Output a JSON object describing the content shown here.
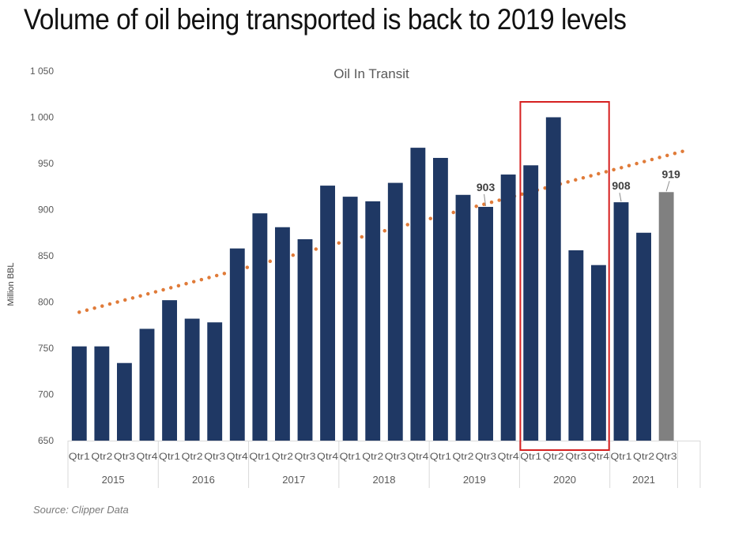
{
  "headline": "Volume of oil being transported is back to 2019 levels",
  "source": "Source: Clipper Data",
  "chart_data": {
    "type": "bar",
    "title": "Oil In Transit",
    "ylabel": "Million BBL",
    "xlabel": "",
    "ylim": [
      650,
      1050
    ],
    "yticks": [
      "650",
      "700",
      "750",
      "800",
      "850",
      "900",
      "950",
      "1 000",
      "1 050"
    ],
    "yticks_values": [
      650,
      700,
      750,
      800,
      850,
      900,
      950,
      1000,
      1050
    ],
    "categories": [
      "Qtr1",
      "Qtr2",
      "Qtr3",
      "Qtr4",
      "Qtr1",
      "Qtr2",
      "Qtr3",
      "Qtr4",
      "Qtr1",
      "Qtr2",
      "Qtr3",
      "Qtr4",
      "Qtr1",
      "Qtr2",
      "Qtr3",
      "Qtr4",
      "Qtr1",
      "Qtr2",
      "Qtr3",
      "Qtr4",
      "Qtr1",
      "Qtr2",
      "Qtr3",
      "Qtr4",
      "Qtr1",
      "Qtr2",
      "Qtr3"
    ],
    "years": [
      {
        "label": "2015",
        "count": 4
      },
      {
        "label": "2016",
        "count": 4
      },
      {
        "label": "2017",
        "count": 4
      },
      {
        "label": "2018",
        "count": 4
      },
      {
        "label": "2019",
        "count": 4
      },
      {
        "label": "2020",
        "count": 4
      },
      {
        "label": "2021",
        "count": 3
      }
    ],
    "values": [
      752,
      752,
      734,
      771,
      802,
      782,
      778,
      858,
      896,
      881,
      868,
      926,
      914,
      909,
      929,
      967,
      956,
      916,
      903,
      938,
      948,
      1000,
      856,
      840,
      908,
      875,
      919
    ],
    "colors": {
      "bar": "#1f3864",
      "highlight_bar": "#808080",
      "trend": "#e07b39",
      "highlight_box": "#d62020",
      "axis": "#d9d9d9",
      "text": "#595959"
    },
    "highlight_bar_index": 26,
    "data_labels": [
      {
        "index": 18,
        "text": "903"
      },
      {
        "index": 24,
        "text": "908"
      },
      {
        "index": 26,
        "text": "919"
      }
    ],
    "trendline": {
      "type": "linear",
      "style": "dotted",
      "start": 789,
      "end": 965
    },
    "highlight_box_years": [
      "2020"
    ],
    "grid": false
  }
}
